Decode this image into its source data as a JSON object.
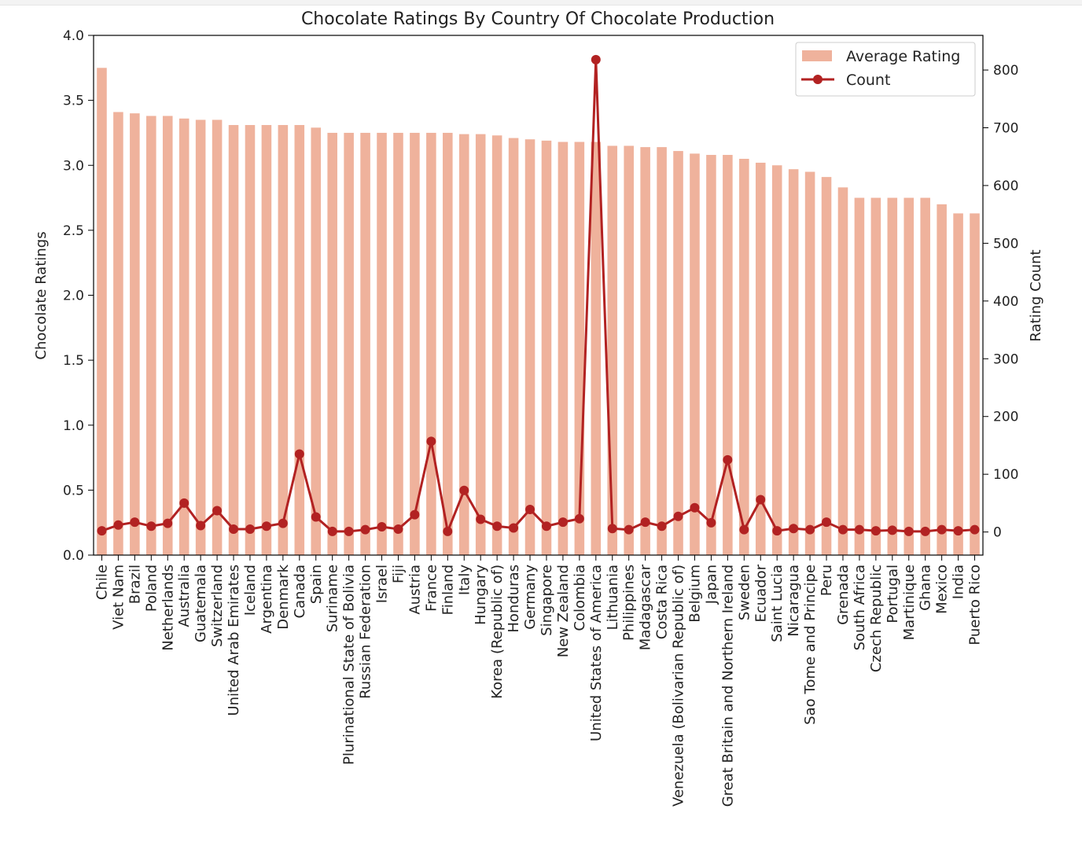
{
  "chart_data": {
    "type": "bar",
    "title": "Chocolate Ratings By Country Of Chocolate Production",
    "ylabel": "Chocolate Ratings",
    "y2label": "Rating Count",
    "ylim": [
      0,
      4.0
    ],
    "y2lim": [
      -40,
      860
    ],
    "yticks": [
      "0.0",
      "0.5",
      "1.0",
      "1.5",
      "2.0",
      "2.5",
      "3.0",
      "3.5",
      "4.0"
    ],
    "y2ticks": [
      "0",
      "100",
      "200",
      "300",
      "400",
      "500",
      "600",
      "700",
      "800"
    ],
    "legend_position": "top-right",
    "colors": {
      "bar": "#efb29c",
      "line": "#b22222"
    },
    "categories": [
      "Chile",
      "Viet Nam",
      "Brazil",
      "Poland",
      "Netherlands",
      "Australia",
      "Guatemala",
      "Switzerland",
      "United Arab Emirates",
      "Iceland",
      "Argentina",
      "Denmark",
      "Canada",
      "Spain",
      "Suriname",
      "Plurinational State of Bolivia",
      "Russian Federation",
      "Israel",
      "Fiji",
      "Austria",
      "France",
      "Finland",
      "Italy",
      "Hungary",
      "Korea (Republic of)",
      "Honduras",
      "Germany",
      "Singapore",
      "New Zealand",
      "Colombia",
      "United States of America",
      "Lithuania",
      "Philippines",
      "Madagascar",
      "Costa Rica",
      "Venezuela (Bolivarian Republic of)",
      "Belgium",
      "Japan",
      "Great Britain and Northern Ireland",
      "Sweden",
      "Ecuador",
      "Saint Lucia",
      "Nicaragua",
      "Sao Tome and Principe",
      "Peru",
      "Grenada",
      "South Africa",
      "Czech Republic",
      "Portugal",
      "Martinique",
      "Ghana",
      "Mexico",
      "India",
      "Puerto Rico"
    ],
    "series": [
      {
        "name": "Average Rating",
        "type": "bar",
        "axis": "left",
        "values": [
          3.75,
          3.41,
          3.4,
          3.38,
          3.38,
          3.36,
          3.35,
          3.35,
          3.31,
          3.31,
          3.31,
          3.31,
          3.31,
          3.29,
          3.25,
          3.25,
          3.25,
          3.25,
          3.25,
          3.25,
          3.25,
          3.25,
          3.24,
          3.24,
          3.23,
          3.21,
          3.2,
          3.19,
          3.18,
          3.18,
          3.18,
          3.15,
          3.15,
          3.14,
          3.14,
          3.11,
          3.09,
          3.08,
          3.08,
          3.05,
          3.02,
          3.0,
          2.97,
          2.95,
          2.91,
          2.83,
          2.75,
          2.75,
          2.75,
          2.75,
          2.75,
          2.7,
          2.63,
          2.63
        ]
      },
      {
        "name": "Count",
        "type": "line",
        "axis": "right",
        "values": [
          2,
          12,
          17,
          10,
          15,
          50,
          11,
          37,
          5,
          5,
          10,
          15,
          135,
          26,
          1,
          1,
          4,
          9,
          5,
          30,
          157,
          1,
          72,
          22,
          10,
          7,
          39,
          10,
          17,
          23,
          818,
          6,
          4,
          17,
          10,
          27,
          42,
          16,
          125,
          4,
          56,
          2,
          6,
          4,
          17,
          4,
          4,
          2,
          3,
          1,
          1,
          4,
          2,
          4
        ]
      }
    ]
  }
}
